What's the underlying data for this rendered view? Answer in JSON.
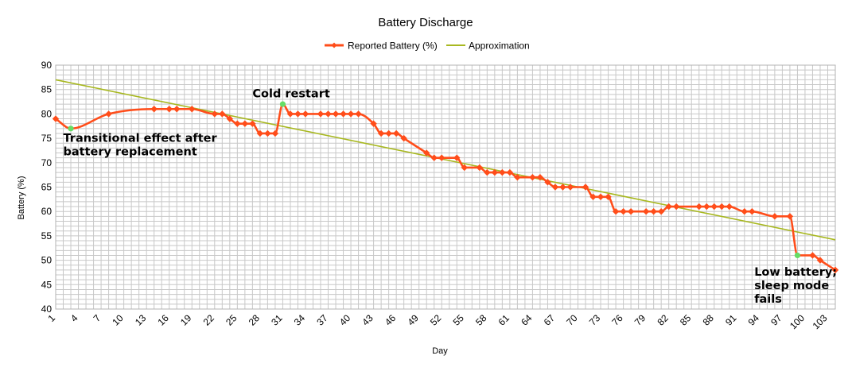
{
  "chart_data": {
    "type": "line",
    "title": "Battery Discharge",
    "xlabel": "Day",
    "ylabel": "Battery (%)",
    "ylim": [
      40,
      90
    ],
    "yticks": [
      40,
      45,
      50,
      55,
      60,
      65,
      70,
      75,
      80,
      85,
      90
    ],
    "xlim": [
      1,
      104
    ],
    "xticks": [
      1,
      4,
      7,
      10,
      13,
      16,
      19,
      22,
      25,
      28,
      31,
      34,
      37,
      40,
      43,
      46,
      49,
      52,
      55,
      58,
      61,
      64,
      67,
      70,
      73,
      76,
      79,
      82,
      85,
      88,
      91,
      94,
      97,
      100,
      103
    ],
    "grid": true,
    "legend_position": "top",
    "series": [
      {
        "name": "Reported Battery (%)",
        "color": "#ff4d1a",
        "x": [
          1,
          3,
          8,
          14,
          16,
          17,
          19,
          22,
          23,
          24,
          25,
          26,
          27,
          28,
          29,
          30,
          31,
          32,
          33,
          34,
          36,
          37,
          38,
          39,
          40,
          41,
          43,
          44,
          45,
          46,
          47,
          50,
          51,
          52,
          54,
          55,
          57,
          58,
          59,
          60,
          61,
          62,
          64,
          65,
          66,
          67,
          68,
          69,
          71,
          72,
          73,
          74,
          75,
          76,
          77,
          79,
          80,
          81,
          82,
          83,
          86,
          87,
          88,
          89,
          90,
          92,
          93,
          96,
          98,
          99,
          101,
          102,
          104
        ],
        "values": [
          79,
          77,
          80,
          81,
          81,
          81,
          81,
          80,
          80,
          79,
          78,
          78,
          78,
          76,
          76,
          76,
          82,
          80,
          80,
          80,
          80,
          80,
          80,
          80,
          80,
          80,
          78,
          76,
          76,
          76,
          75,
          72,
          71,
          71,
          71,
          69,
          69,
          68,
          68,
          68,
          68,
          67,
          67,
          67,
          66,
          65,
          65,
          65,
          65,
          63,
          63,
          63,
          60,
          60,
          60,
          60,
          60,
          60,
          61,
          61,
          61,
          61,
          61,
          61,
          61,
          60,
          60,
          59,
          59,
          51,
          51,
          50,
          48
        ],
        "highlight_color": "#66dd66",
        "highlight_points": [
          3,
          31,
          99
        ]
      },
      {
        "name": "Approximation",
        "color": "#a8b820",
        "x": [
          1,
          104
        ],
        "values": [
          87,
          54.2
        ]
      }
    ],
    "annotations": [
      {
        "lines": [
          "Transitional effect after",
          "battery replacement"
        ],
        "x": 2,
        "y": 74.3
      },
      {
        "lines": [
          "Cold restart"
        ],
        "x": 27,
        "y": 83.4
      },
      {
        "lines": [
          "Low battery;",
          "sleep mode",
          "fails"
        ],
        "x": 93.3,
        "y": 46.8
      }
    ]
  }
}
